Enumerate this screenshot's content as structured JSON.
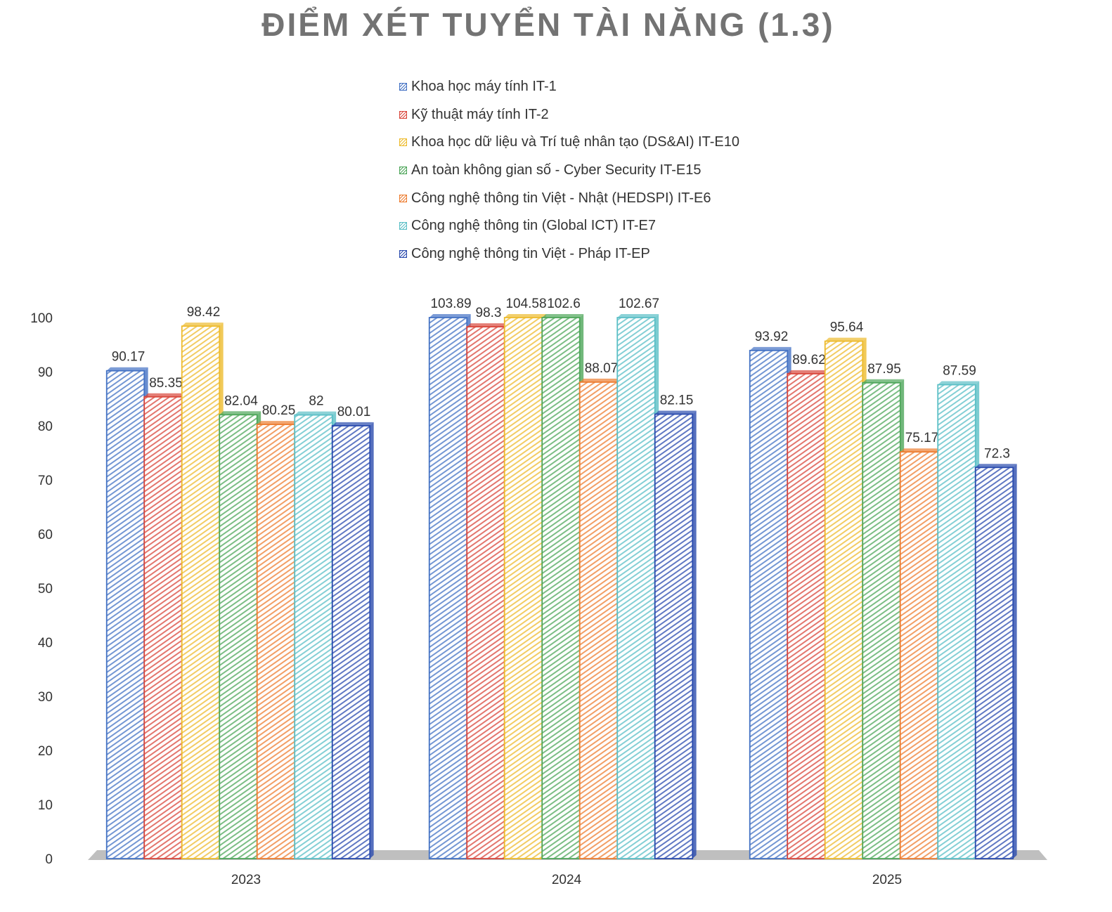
{
  "chart_data": {
    "type": "bar",
    "title": "ĐIỂM XÉT TUYỂN TÀI NĂNG (1.3)",
    "xlabel": "",
    "ylabel": "",
    "ylim": [
      0,
      100
    ],
    "yticks": [
      "0",
      "10",
      "20",
      "30",
      "40",
      "50",
      "60",
      "70",
      "80",
      "90",
      "100"
    ],
    "categories": [
      "2023",
      "2024",
      "2025"
    ],
    "legend_position": "top",
    "series": [
      {
        "name": "Khoa học máy tính IT-1",
        "color": "#4472C4",
        "values": [
          90.17,
          103.89,
          93.92
        ],
        "labels": [
          "90.17",
          "103.89",
          "93.92"
        ]
      },
      {
        "name": "Kỹ thuật máy tính IT-2",
        "color": "#D9473C",
        "values": [
          85.35,
          98.3,
          89.62
        ],
        "labels": [
          "85.35",
          "98.3",
          "89.62"
        ]
      },
      {
        "name": "Khoa học dữ liệu và Trí tuệ nhân tạo (DS&AI) IT-E10",
        "color": "#EDBB2E",
        "values": [
          98.42,
          104.58,
          95.64
        ],
        "labels": [
          "98.42",
          "104.58",
          "95.64"
        ]
      },
      {
        "name": "An toàn không gian số - Cyber Security IT-E15",
        "color": "#4EA65A",
        "values": [
          82.04,
          102.6,
          87.95
        ],
        "labels": [
          "82.04",
          "102.6",
          "87.95"
        ]
      },
      {
        "name": "Công nghệ thông tin Việt - Nhật (HEDSPI) IT-E6",
        "color": "#ED7D31",
        "values": [
          80.25,
          88.07,
          75.17
        ],
        "labels": [
          "80.25",
          "88.07",
          "75.17"
        ]
      },
      {
        "name": "Công nghệ thông tin (Global ICT) IT-E7",
        "color": "#5BBFC6",
        "values": [
          82,
          102.67,
          87.59
        ],
        "labels": [
          "82",
          "102.67",
          "87.59"
        ]
      },
      {
        "name": "Công nghệ thông tin Việt - Pháp IT-EP",
        "color": "#2A4BAE",
        "values": [
          80.01,
          82.15,
          72.3
        ],
        "labels": [
          "80.01",
          "82.15",
          "72.3"
        ]
      }
    ]
  }
}
